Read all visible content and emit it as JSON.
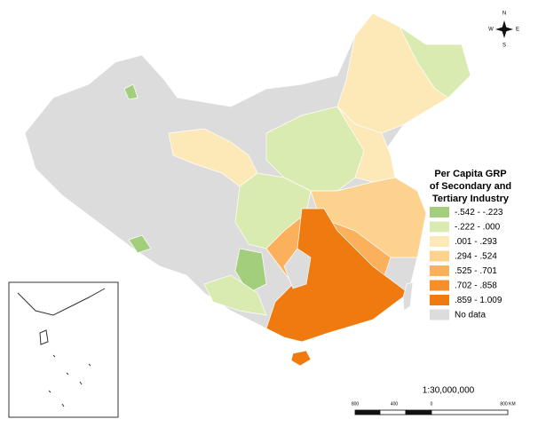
{
  "legend": {
    "title_lines": [
      "Per Capita GRP",
      "of Secondary and",
      "Tertiary Industry"
    ],
    "items": [
      {
        "label": "-.542 - -.223",
        "color": "#a3cf7d"
      },
      {
        "label": "-.222 - .000",
        "color": "#d9ebb0"
      },
      {
        "label": ".001 - .293",
        "color": "#fde9b8"
      },
      {
        "label": ".294 - .524",
        "color": "#fcd28e"
      },
      {
        "label": ".525 - .701",
        "color": "#fbb05c"
      },
      {
        "label": ".702 - .858",
        "color": "#f68f2a"
      },
      {
        "label": ".859 - 1.009",
        "color": "#ef7b10"
      },
      {
        "label": "No data",
        "color": "#dcdcdc"
      }
    ]
  },
  "scale": {
    "ratio": "1:30,000,000",
    "labels": [
      "800",
      "400",
      "0",
      "800 KM"
    ]
  },
  "compass": {
    "n": "N",
    "s": "S",
    "w": "W",
    "e": "E"
  }
}
